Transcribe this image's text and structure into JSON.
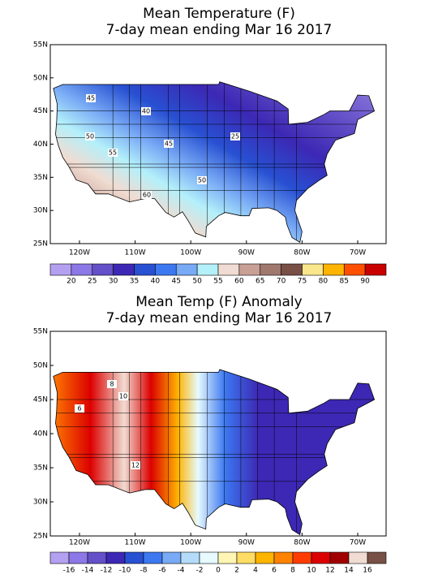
{
  "panels": [
    {
      "title": "Mean Temperature (F)",
      "subtitle": "7-day mean ending Mar 16 2017",
      "lat_labels": [
        "55N",
        "50N",
        "45N",
        "40N",
        "35N",
        "30N",
        "25N"
      ],
      "lon_labels": [
        "120W",
        "110W",
        "100W",
        "90W",
        "80W",
        "70W"
      ],
      "contour_labels": [
        "45",
        "40",
        "50",
        "55",
        "45",
        "25",
        "50",
        "60"
      ],
      "colorbar": {
        "labels": [
          "20",
          "25",
          "30",
          "35",
          "40",
          "45",
          "50",
          "55",
          "60",
          "65",
          "70",
          "75",
          "80",
          "85",
          "90"
        ],
        "colors": [
          "#b4a0f0",
          "#8c78e6",
          "#6450c8",
          "#3c28b4",
          "#2850d2",
          "#3c78f0",
          "#78aaf5",
          "#b4f0fa",
          "#f0dcd2",
          "#c8a096",
          "#a0786e",
          "#785046",
          "#fae68c",
          "#ffb400",
          "#ff5000",
          "#c80000"
        ]
      }
    },
    {
      "title": "Mean Temp (F) Anomaly",
      "subtitle": "7-day mean ending Mar 16 2017",
      "lat_labels": [
        "55N",
        "50N",
        "45N",
        "40N",
        "35N",
        "30N",
        "25N"
      ],
      "lon_labels": [
        "120W",
        "110W",
        "100W",
        "90W",
        "80W",
        "70W"
      ],
      "contour_labels": [
        "8",
        "10",
        "6",
        "12"
      ],
      "colorbar": {
        "labels": [
          "-16",
          "-14",
          "-12",
          "-10",
          "-8",
          "-6",
          "-4",
          "-2",
          "0",
          "2",
          "4",
          "6",
          "8",
          "10",
          "12",
          "14",
          "16"
        ],
        "colors": [
          "#b4a0f0",
          "#8c78e6",
          "#6450c8",
          "#3c28b4",
          "#2850d2",
          "#3c78f0",
          "#78aaf5",
          "#b4dcfa",
          "#e6faff",
          "#fff5b4",
          "#ffdc64",
          "#ffb400",
          "#ff8200",
          "#ff3c00",
          "#dc0000",
          "#a00000",
          "#f0dcd2",
          "#785046"
        ]
      }
    }
  ]
}
